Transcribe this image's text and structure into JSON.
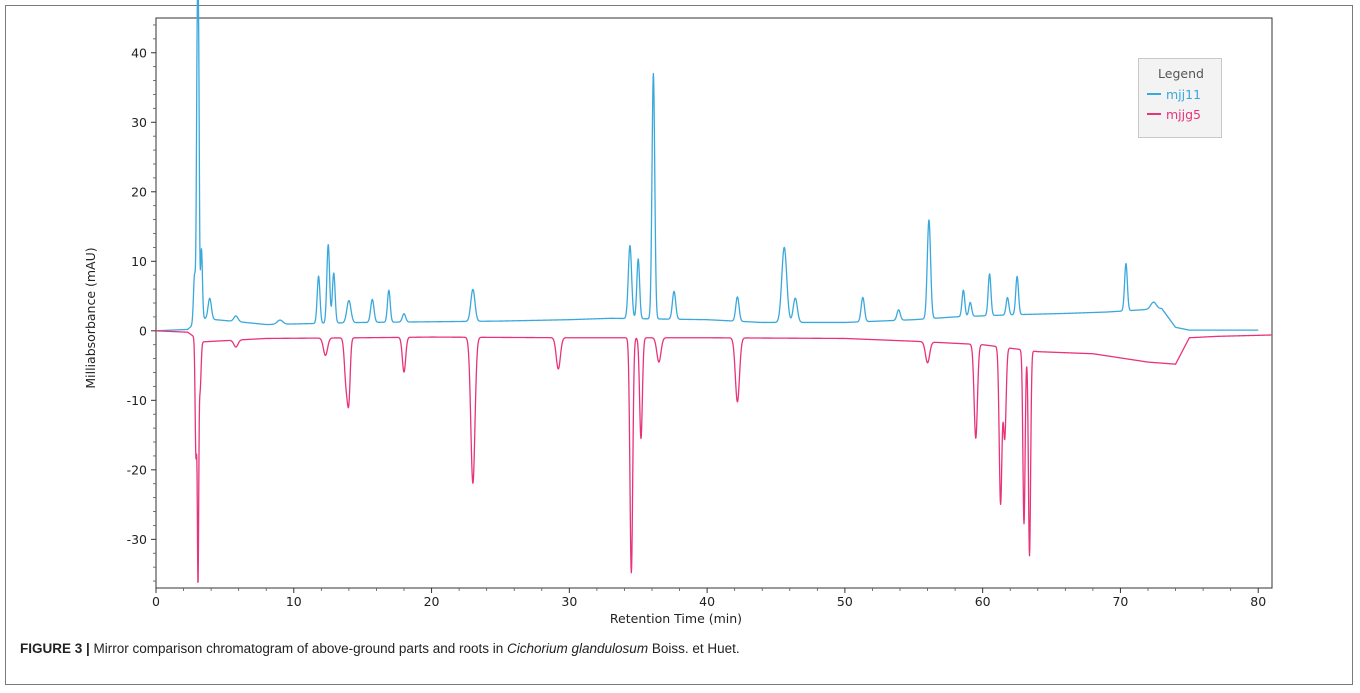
{
  "chart_data": {
    "type": "line",
    "xlabel": "Retention Time (min)",
    "ylabel": "Milliabsorbance (mAU)",
    "xlim": [
      0,
      81
    ],
    "ylim": [
      -37,
      45
    ],
    "x_ticks": [
      "0",
      "10",
      "20",
      "30",
      "40",
      "50",
      "60",
      "70",
      "80"
    ],
    "y_ticks": [
      "40",
      "30",
      "20",
      "10",
      "0",
      "-10",
      "-20",
      "-30"
    ],
    "legend": {
      "title": "Legend",
      "position": "top-right"
    },
    "series": [
      {
        "name": "mjj11",
        "color": "#3aa8dc",
        "baseline": [
          [
            0,
            0
          ],
          [
            2.3,
            0.2
          ],
          [
            3.2,
            1.8
          ],
          [
            6,
            1.3
          ],
          [
            8,
            0.9
          ],
          [
            15,
            1.2
          ],
          [
            20,
            1.3
          ],
          [
            25,
            1.4
          ],
          [
            30,
            1.6
          ],
          [
            33,
            1.8
          ],
          [
            40,
            1.6
          ],
          [
            44,
            1.2
          ],
          [
            50,
            1.2
          ],
          [
            55,
            1.6
          ],
          [
            58,
            2.0
          ],
          [
            62,
            2.3
          ],
          [
            66,
            2.5
          ],
          [
            69,
            2.7
          ],
          [
            73,
            3.2
          ],
          [
            74,
            0.5
          ],
          [
            75,
            0.1
          ],
          [
            80,
            0.1
          ]
        ],
        "peaks": [
          {
            "rt": 2.8,
            "height": 7,
            "width": 0.08
          },
          {
            "rt": 3.0,
            "height": 41,
            "width": 0.06
          },
          {
            "rt": 3.1,
            "height": 31,
            "width": 0.05
          },
          {
            "rt": 3.3,
            "height": 10,
            "width": 0.07
          },
          {
            "rt": 3.9,
            "height": 3,
            "width": 0.12
          },
          {
            "rt": 5.8,
            "height": 0.8,
            "width": 0.15
          },
          {
            "rt": 9.0,
            "height": 0.6,
            "width": 0.2
          },
          {
            "rt": 11.8,
            "height": 6.8,
            "width": 0.1
          },
          {
            "rt": 12.5,
            "height": 11.3,
            "width": 0.1
          },
          {
            "rt": 12.9,
            "height": 7.2,
            "width": 0.1
          },
          {
            "rt": 14.0,
            "height": 3.2,
            "width": 0.15
          },
          {
            "rt": 15.7,
            "height": 3.3,
            "width": 0.12
          },
          {
            "rt": 16.9,
            "height": 4.6,
            "width": 0.1
          },
          {
            "rt": 18.0,
            "height": 1.2,
            "width": 0.12
          },
          {
            "rt": 23.0,
            "height": 4.6,
            "width": 0.15
          },
          {
            "rt": 34.4,
            "height": 10.5,
            "width": 0.12
          },
          {
            "rt": 35.0,
            "height": 8.6,
            "width": 0.1
          },
          {
            "rt": 36.1,
            "height": 35.3,
            "width": 0.1
          },
          {
            "rt": 37.6,
            "height": 4.0,
            "width": 0.12
          },
          {
            "rt": 42.2,
            "height": 3.5,
            "width": 0.12
          },
          {
            "rt": 45.6,
            "height": 10.8,
            "width": 0.18
          },
          {
            "rt": 46.4,
            "height": 3.5,
            "width": 0.15
          },
          {
            "rt": 51.3,
            "height": 3.5,
            "width": 0.12
          },
          {
            "rt": 53.9,
            "height": 1.5,
            "width": 0.12
          },
          {
            "rt": 56.1,
            "height": 14.2,
            "width": 0.12
          },
          {
            "rt": 58.6,
            "height": 3.8,
            "width": 0.1
          },
          {
            "rt": 59.1,
            "height": 2.0,
            "width": 0.1
          },
          {
            "rt": 60.5,
            "height": 6.0,
            "width": 0.1
          },
          {
            "rt": 61.8,
            "height": 2.5,
            "width": 0.1
          },
          {
            "rt": 62.5,
            "height": 5.5,
            "width": 0.1
          },
          {
            "rt": 70.4,
            "height": 6.8,
            "width": 0.1
          },
          {
            "rt": 72.4,
            "height": 1.0,
            "width": 0.2
          }
        ]
      },
      {
        "name": "mjjg5",
        "color": "#e8337a",
        "baseline": [
          [
            0,
            0
          ],
          [
            2.3,
            -0.2
          ],
          [
            3.3,
            -1.6
          ],
          [
            8,
            -1.1
          ],
          [
            15,
            -1.0
          ],
          [
            20,
            -0.9
          ],
          [
            30,
            -1.0
          ],
          [
            40,
            -1.0
          ],
          [
            50,
            -1.1
          ],
          [
            55,
            -1.5
          ],
          [
            60,
            -2.0
          ],
          [
            64,
            -3.0
          ],
          [
            68,
            -3.3
          ],
          [
            72,
            -4.5
          ],
          [
            74,
            -4.8
          ],
          [
            75,
            -1.0
          ],
          [
            77,
            -0.8
          ],
          [
            81,
            -0.6
          ]
        ],
        "peaks": [
          {
            "rt": 2.9,
            "height": -17,
            "width": 0.06
          },
          {
            "rt": 3.05,
            "height": -34,
            "width": 0.05
          },
          {
            "rt": 3.2,
            "height": -7,
            "width": 0.07
          },
          {
            "rt": 5.8,
            "height": -1.0,
            "width": 0.15
          },
          {
            "rt": 12.3,
            "height": -2.5,
            "width": 0.15
          },
          {
            "rt": 13.8,
            "height": -6.5,
            "width": 0.12
          },
          {
            "rt": 14.0,
            "height": -8.0,
            "width": 0.1
          },
          {
            "rt": 18.0,
            "height": -5.0,
            "width": 0.12
          },
          {
            "rt": 23.0,
            "height": -21.0,
            "width": 0.15
          },
          {
            "rt": 29.2,
            "height": -4.5,
            "width": 0.15
          },
          {
            "rt": 34.5,
            "height": -33.8,
            "width": 0.1
          },
          {
            "rt": 35.2,
            "height": -14.5,
            "width": 0.1
          },
          {
            "rt": 36.5,
            "height": -3.5,
            "width": 0.15
          },
          {
            "rt": 42.2,
            "height": -9.2,
            "width": 0.15
          },
          {
            "rt": 56.0,
            "height": -3.0,
            "width": 0.15
          },
          {
            "rt": 59.5,
            "height": -13.5,
            "width": 0.12
          },
          {
            "rt": 61.3,
            "height": -22.5,
            "width": 0.1
          },
          {
            "rt": 61.6,
            "height": -13.0,
            "width": 0.1
          },
          {
            "rt": 63.0,
            "height": -25.0,
            "width": 0.08
          },
          {
            "rt": 63.4,
            "height": -29.5,
            "width": 0.08
          }
        ]
      }
    ]
  },
  "caption": {
    "label": "FIGURE 3 |",
    "text_before": " Mirror comparison chromatogram of above-ground parts and roots in ",
    "species": "Cichorium glandulosum",
    "text_after": " Boiss. et Huet."
  }
}
